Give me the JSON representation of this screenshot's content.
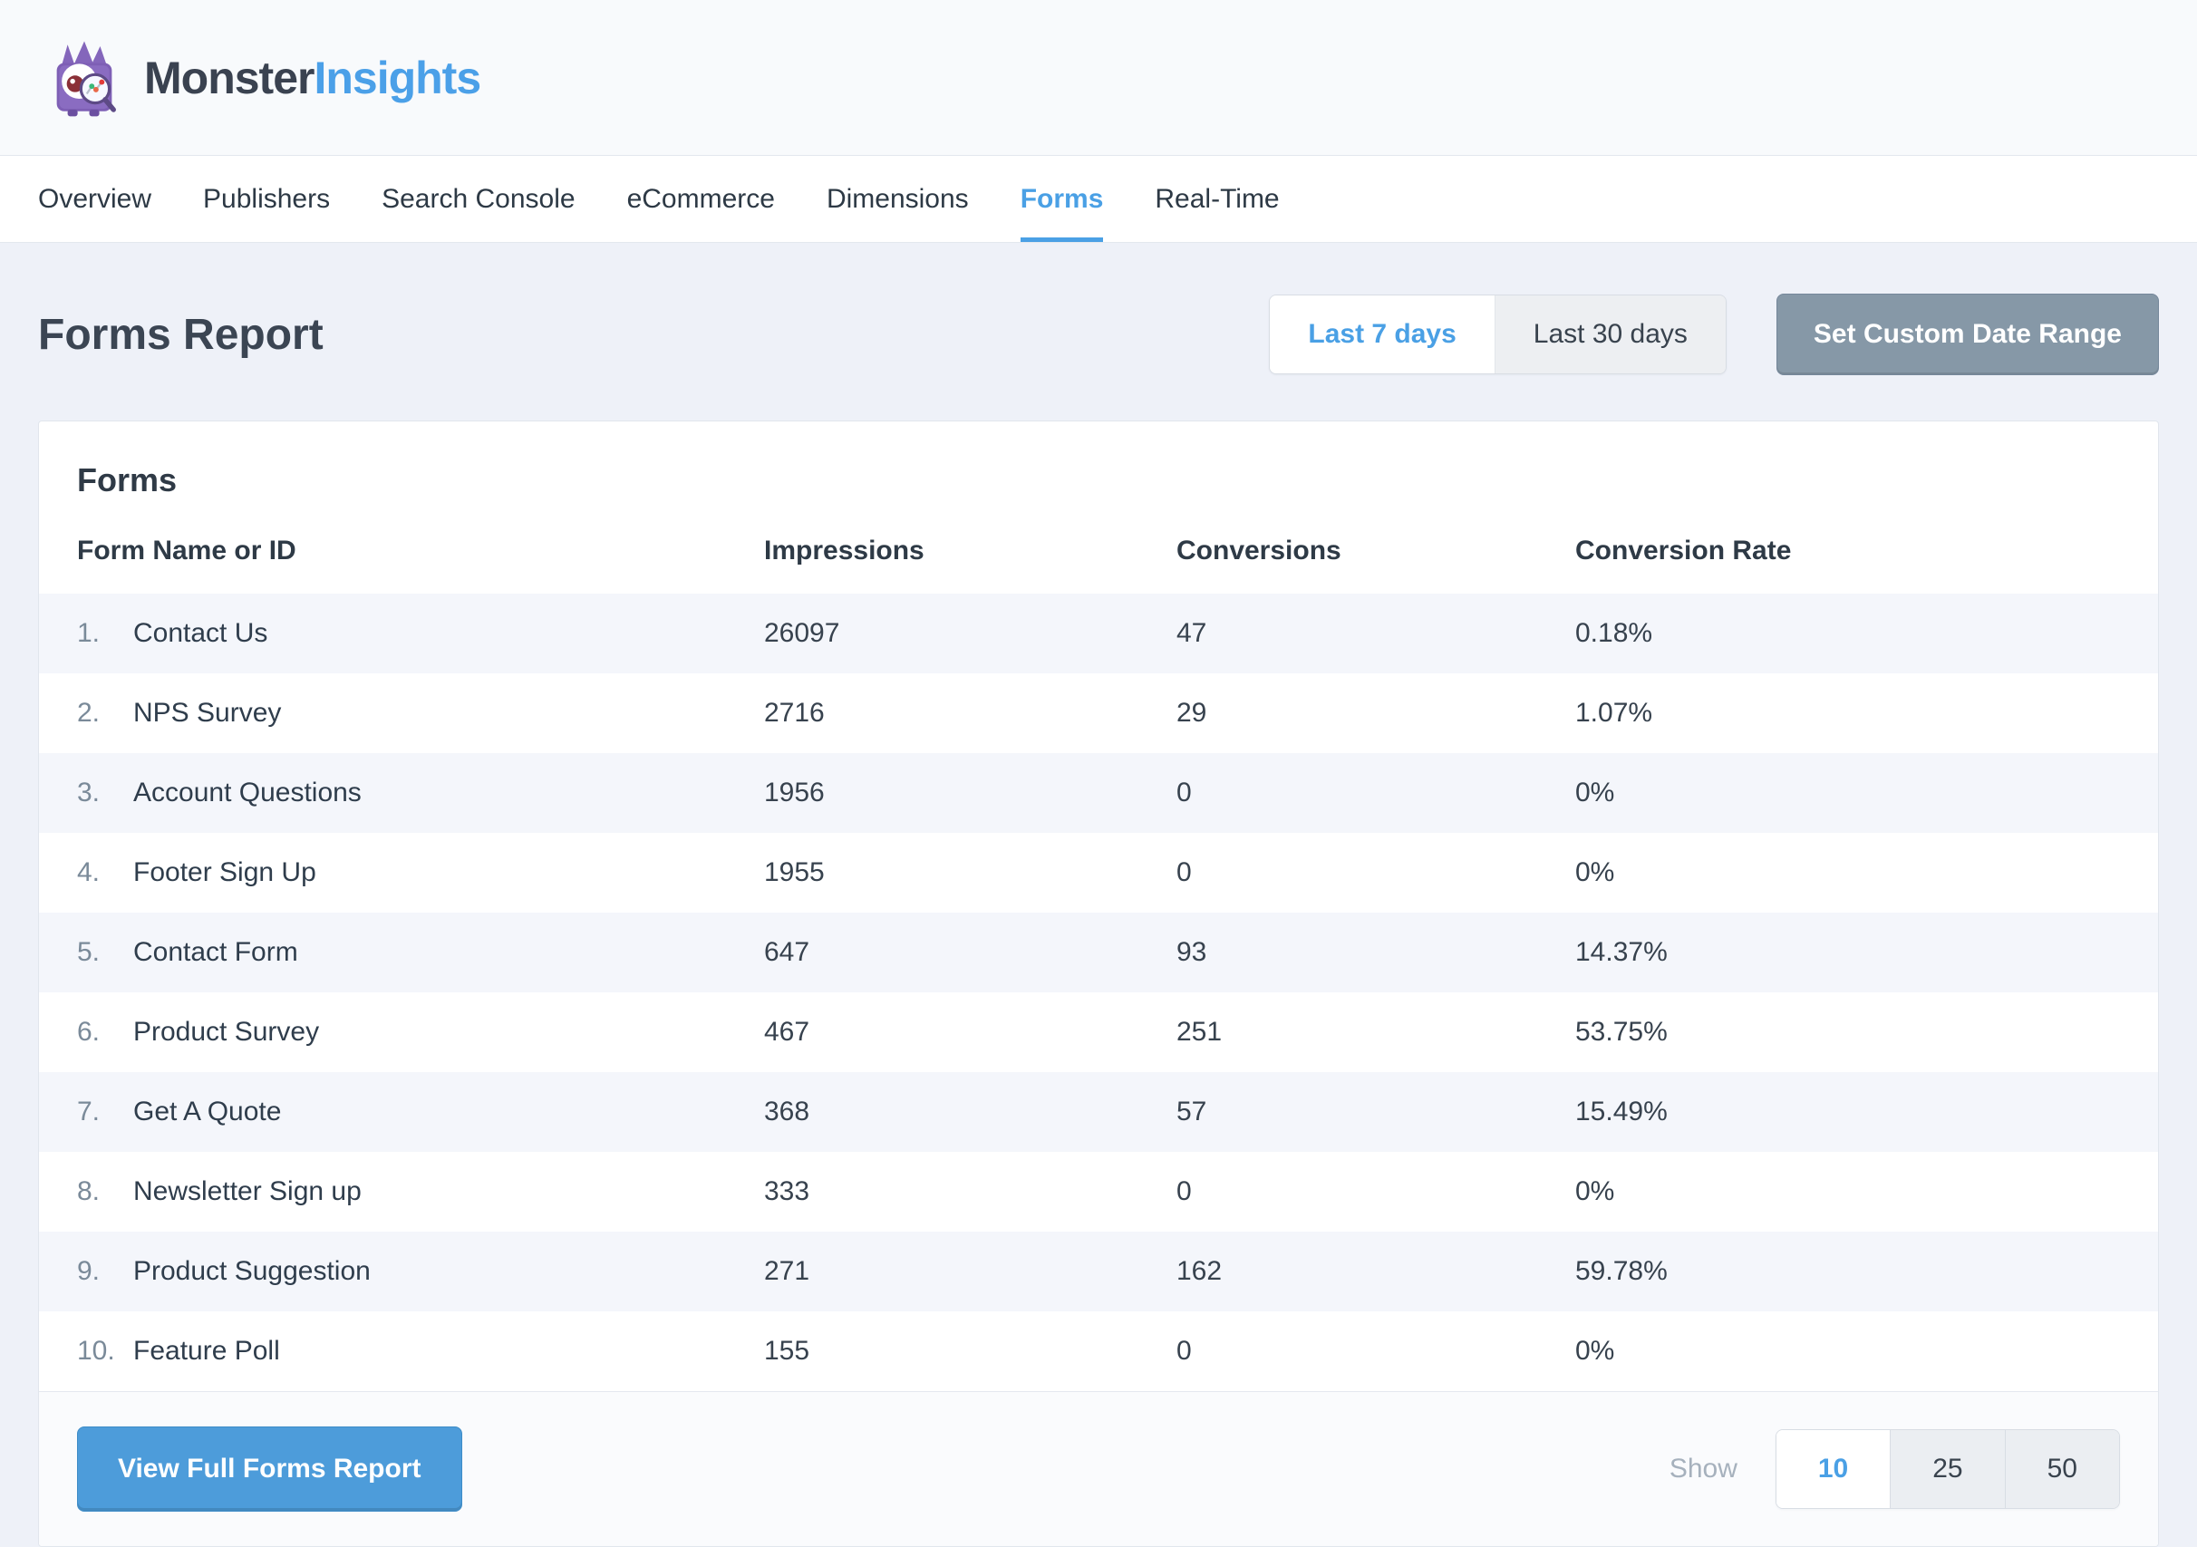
{
  "header": {
    "logo": {
      "monster": "Monster",
      "insights": "Insights"
    }
  },
  "nav": {
    "items": [
      {
        "label": "Overview",
        "active": false
      },
      {
        "label": "Publishers",
        "active": false
      },
      {
        "label": "Search Console",
        "active": false
      },
      {
        "label": "eCommerce",
        "active": false
      },
      {
        "label": "Dimensions",
        "active": false
      },
      {
        "label": "Forms",
        "active": true
      },
      {
        "label": "Real-Time",
        "active": false
      }
    ]
  },
  "report": {
    "title": "Forms Report",
    "last7": "Last 7 days",
    "last30": "Last 30 days",
    "active_range": "Last 7 days",
    "custom": "Set Custom Date Range"
  },
  "card": {
    "title": "Forms"
  },
  "table": {
    "columns": [
      "Form Name or ID",
      "Impressions",
      "Conversions",
      "Conversion Rate"
    ],
    "rows": [
      {
        "rank": "1.",
        "name": "Contact Us",
        "impressions": "26097",
        "conversions": "47",
        "rate": "0.18%"
      },
      {
        "rank": "2.",
        "name": "NPS Survey",
        "impressions": "2716",
        "conversions": "29",
        "rate": "1.07%"
      },
      {
        "rank": "3.",
        "name": "Account Questions",
        "impressions": "1956",
        "conversions": "0",
        "rate": "0%"
      },
      {
        "rank": "4.",
        "name": "Footer Sign Up",
        "impressions": "1955",
        "conversions": "0",
        "rate": "0%"
      },
      {
        "rank": "5.",
        "name": "Contact Form",
        "impressions": "647",
        "conversions": "93",
        "rate": "14.37%"
      },
      {
        "rank": "6.",
        "name": "Product Survey",
        "impressions": "467",
        "conversions": "251",
        "rate": "53.75%"
      },
      {
        "rank": "7.",
        "name": "Get A Quote",
        "impressions": "368",
        "conversions": "57",
        "rate": "15.49%"
      },
      {
        "rank": "8.",
        "name": "Newsletter Sign up",
        "impressions": "333",
        "conversions": "0",
        "rate": "0%"
      },
      {
        "rank": "9.",
        "name": "Product Suggestion",
        "impressions": "271",
        "conversions": "162",
        "rate": "59.78%"
      },
      {
        "rank": "10.",
        "name": "Feature Poll",
        "impressions": "155",
        "conversions": "0",
        "rate": "0%"
      }
    ]
  },
  "footer": {
    "view_full": "View Full Forms Report",
    "show_label": "Show",
    "sizes": [
      "10",
      "25",
      "50"
    ],
    "active_size": "10"
  },
  "colors": {
    "accent_blue": "#4aa0e5",
    "button_blue": "#4d9cda",
    "slate_button": "#8698a7",
    "page_background": "#eef1f8",
    "row_stripe": "#f4f6fb",
    "dark_text": "#3b4553"
  }
}
